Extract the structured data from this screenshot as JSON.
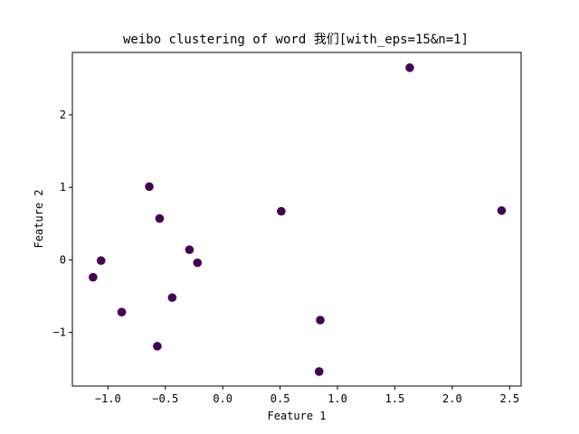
{
  "chart_data": {
    "type": "scatter",
    "title": "weibo clustering of word 我们[with_eps=15&n=1]",
    "xlabel": "Feature 1",
    "ylabel": "Feature 2",
    "xlim": [
      -1.31,
      2.6
    ],
    "ylim": [
      -1.74,
      2.86
    ],
    "xticks": [
      -1.0,
      -0.5,
      0.0,
      0.5,
      1.0,
      1.5,
      2.0,
      2.5
    ],
    "xtick_labels": [
      "−1.0",
      "−0.5",
      "0.0",
      "0.5",
      "1.0",
      "1.5",
      "2.0",
      "2.5"
    ],
    "yticks": [
      -1,
      0,
      1,
      2
    ],
    "ytick_labels": [
      "−1",
      "0",
      "1",
      "2"
    ],
    "grid": false,
    "legend": "none",
    "point_color": "#440154",
    "series": [
      {
        "x": [
          1.63,
          2.43,
          -0.64,
          -0.55,
          0.51,
          -0.29,
          -0.22,
          -1.06,
          -1.13,
          -0.44,
          -0.88,
          0.85,
          -0.57,
          0.84
        ],
        "y": [
          2.65,
          0.68,
          1.01,
          0.57,
          0.67,
          0.14,
          -0.04,
          -0.01,
          -0.24,
          -0.52,
          -0.72,
          -0.83,
          -1.19,
          -1.54
        ]
      }
    ]
  }
}
